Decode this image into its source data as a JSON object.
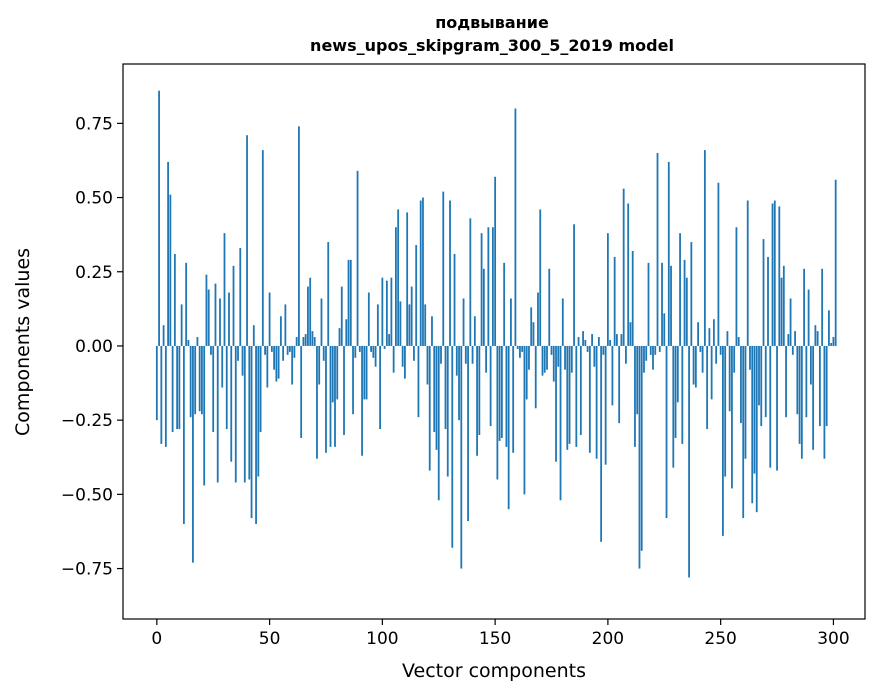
{
  "chart_data": {
    "type": "bar",
    "title_lines": [
      "подвывание",
      "news_upos_skipgram_300_5_2019 model"
    ],
    "xlabel": "Vector components",
    "ylabel": "Components values",
    "xlim": [
      -15,
      314
    ],
    "ylim": [
      -0.92,
      0.95
    ],
    "x_ticks": [
      0,
      50,
      100,
      150,
      200,
      250,
      300
    ],
    "x_tick_labels": [
      "0",
      "50",
      "100",
      "150",
      "200",
      "250",
      "300"
    ],
    "y_ticks": [
      -0.75,
      -0.5,
      -0.25,
      0.0,
      0.25,
      0.5,
      0.75
    ],
    "y_tick_labels": [
      "−0.75",
      "−0.50",
      "−0.25",
      "0.00",
      "0.25",
      "0.50",
      "0.75"
    ],
    "bar_color": "#1f77b4",
    "values": [
      -0.25,
      0.86,
      -0.33,
      0.07,
      -0.34,
      0.62,
      0.51,
      -0.29,
      0.31,
      -0.28,
      -0.28,
      0.14,
      -0.6,
      0.28,
      0.02,
      -0.24,
      -0.73,
      -0.23,
      0.03,
      -0.22,
      -0.23,
      -0.47,
      0.24,
      0.19,
      -0.03,
      -0.29,
      0.21,
      -0.46,
      0.16,
      -0.14,
      0.38,
      -0.28,
      0.18,
      -0.39,
      0.27,
      -0.46,
      -0.05,
      0.33,
      -0.1,
      -0.46,
      0.71,
      -0.45,
      -0.58,
      0.07,
      -0.6,
      -0.44,
      -0.29,
      0.66,
      -0.03,
      -0.14,
      0.18,
      -0.02,
      -0.08,
      -0.12,
      -0.11,
      0.1,
      -0.05,
      0.14,
      -0.03,
      -0.02,
      -0.13,
      -0.04,
      0.03,
      0.74,
      -0.31,
      0.03,
      0.04,
      0.2,
      0.23,
      0.05,
      0.03,
      -0.38,
      -0.13,
      0.16,
      -0.05,
      -0.36,
      0.35,
      -0.34,
      -0.19,
      -0.34,
      -0.18,
      0.06,
      0.2,
      -0.3,
      0.09,
      0.29,
      0.29,
      -0.23,
      -0.04,
      0.59,
      -0.02,
      -0.37,
      -0.18,
      -0.18,
      0.18,
      -0.02,
      -0.04,
      -0.07,
      0.14,
      -0.28,
      0.23,
      -0.01,
      0.22,
      0.04,
      0.23,
      -0.09,
      0.4,
      0.46,
      0.15,
      -0.07,
      -0.11,
      0.45,
      0.14,
      0.2,
      -0.05,
      0.34,
      -0.24,
      0.49,
      0.5,
      0.14,
      -0.13,
      -0.42,
      0.1,
      -0.29,
      -0.35,
      -0.52,
      -0.06,
      0.52,
      -0.28,
      -0.44,
      0.49,
      -0.68,
      0.31,
      -0.1,
      -0.25,
      -0.75,
      0.16,
      -0.06,
      -0.59,
      0.43,
      -0.06,
      0.1,
      -0.37,
      -0.3,
      0.38,
      0.26,
      -0.09,
      0.4,
      -0.27,
      0.4,
      0.57,
      -0.45,
      -0.32,
      -0.31,
      0.28,
      -0.34,
      -0.55,
      0.16,
      -0.36,
      0.8,
      -0.01,
      -0.04,
      -0.02,
      -0.5,
      -0.18,
      -0.08,
      0.13,
      0.08,
      -0.21,
      0.18,
      0.46,
      -0.1,
      -0.09,
      -0.08,
      0.26,
      -0.03,
      -0.12,
      -0.39,
      -0.07,
      -0.52,
      0.16,
      -0.08,
      -0.35,
      -0.33,
      -0.09,
      0.41,
      -0.34,
      0.03,
      -0.3,
      0.05,
      0.02,
      -0.02,
      -0.36,
      0.04,
      -0.07,
      -0.38,
      0.03,
      -0.66,
      -0.03,
      -0.4,
      0.38,
      0.02,
      -0.2,
      0.3,
      0.04,
      -0.26,
      0.04,
      0.53,
      -0.06,
      0.48,
      0.08,
      0.32,
      -0.34,
      -0.23,
      -0.75,
      -0.69,
      -0.09,
      -0.05,
      0.28,
      -0.03,
      -0.08,
      -0.03,
      0.65,
      -0.02,
      0.28,
      0.11,
      -0.58,
      0.62,
      0.27,
      -0.41,
      -0.31,
      -0.19,
      0.38,
      -0.33,
      0.29,
      0.23,
      -0.78,
      0.35,
      -0.13,
      -0.14,
      0.08,
      -0.02,
      -0.09,
      0.66,
      -0.28,
      0.06,
      -0.18,
      0.09,
      -0.06,
      0.55,
      -0.03,
      -0.64,
      -0.44,
      0.05,
      -0.22,
      -0.48,
      -0.09,
      0.4,
      0.03,
      -0.26,
      -0.58,
      -0.38,
      0.49,
      -0.08,
      -0.53,
      -0.43,
      -0.56,
      -0.2,
      -0.27,
      0.36,
      -0.24,
      0.3,
      -0.41,
      0.48,
      0.49,
      -0.42,
      0.47,
      0.23,
      0.27,
      -0.24,
      0.04,
      0.16,
      -0.03,
      0.05,
      -0.23,
      -0.33,
      -0.38,
      0.26,
      -0.24,
      0.19,
      -0.13,
      -0.35,
      0.07,
      0.05,
      -0.27,
      0.26,
      -0.38,
      -0.27,
      0.12,
      0.01,
      0.03,
      0.56
    ]
  }
}
